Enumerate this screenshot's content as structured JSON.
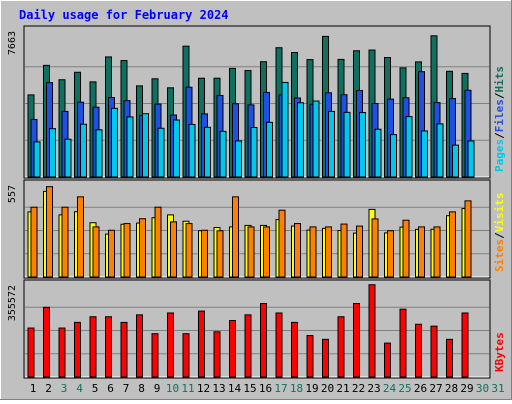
{
  "chart_data": [
    {
      "type": "bar",
      "title": "Daily usage for February 2024",
      "max_label": "7663",
      "right_labels": [
        {
          "text": "Pages",
          "color": "#00c8e8"
        },
        {
          "text": "/",
          "color": "#000000"
        },
        {
          "text": "Files",
          "color": "#2050e0"
        },
        {
          "text": "/",
          "color": "#000000"
        },
        {
          "text": "Hits",
          "color": "#107060"
        }
      ],
      "ylim": [
        0,
        7663
      ],
      "categories": [
        "1",
        "2",
        "3",
        "4",
        "5",
        "6",
        "7",
        "8",
        "9",
        "10",
        "11",
        "12",
        "13",
        "14",
        "15",
        "16",
        "17",
        "18",
        "19",
        "20",
        "21",
        "22",
        "23",
        "24",
        "25",
        "26",
        "27",
        "28",
        "29",
        "30",
        "31"
      ],
      "category_colors": [
        "#000000",
        "#000000",
        "#107060",
        "#107060",
        "#000000",
        "#000000",
        "#000000",
        "#000000",
        "#000000",
        "#107060",
        "#107060",
        "#000000",
        "#000000",
        "#000000",
        "#000000",
        "#000000",
        "#107060",
        "#107060",
        "#000000",
        "#000000",
        "#000000",
        "#000000",
        "#000000",
        "#107060",
        "#107060",
        "#000000",
        "#000000",
        "#000000",
        "#000000",
        "#107060",
        "#107060"
      ],
      "series": [
        {
          "name": "Hits",
          "color": "#107060",
          "values": [
            4280,
            5820,
            5070,
            5460,
            4960,
            6260,
            6070,
            4750,
            5120,
            4650,
            6820,
            5150,
            5150,
            5660,
            5550,
            6010,
            6740,
            6490,
            6120,
            7330,
            6130,
            6580,
            6620,
            6230,
            5690,
            6000,
            7360,
            5510,
            5400,
            0,
            0
          ]
        },
        {
          "name": "Files",
          "color": "#2050e0",
          "values": [
            3000,
            4920,
            3420,
            3900,
            3640,
            4140,
            3980,
            3200,
            3800,
            3230,
            4680,
            3290,
            4250,
            3820,
            3760,
            4410,
            4280,
            4120,
            3790,
            4390,
            4290,
            4510,
            3830,
            4060,
            4130,
            5490,
            3880,
            4090,
            4520,
            0,
            0
          ]
        },
        {
          "name": "Pages",
          "color": "#00c8e8",
          "values": [
            1830,
            2520,
            1970,
            2750,
            2460,
            3580,
            3130,
            3300,
            2540,
            2970,
            2740,
            2590,
            2380,
            1880,
            2580,
            2850,
            4930,
            3870,
            3960,
            3420,
            3370,
            3360,
            2490,
            2210,
            3150,
            2400,
            2770,
            1660,
            1880,
            0,
            0
          ]
        }
      ]
    },
    {
      "type": "bar",
      "max_label": "557",
      "right_labels": [
        {
          "text": "Sites",
          "color": "#ff8000"
        },
        {
          "text": "/",
          "color": "#000000"
        },
        {
          "text": "Visits",
          "color": "#ffff00"
        }
      ],
      "ylim": [
        0,
        557
      ],
      "series": [
        {
          "name": "Visits",
          "color": "#ffff00",
          "values": [
            390,
            513,
            372,
            391,
            325,
            257,
            316,
            323,
            355,
            372,
            334,
            277,
            296,
            300,
            309,
            309,
            344,
            305,
            281,
            291,
            278,
            263,
            405,
            264,
            299,
            285,
            286,
            367,
            410,
            0,
            0
          ]
        },
        {
          "name": "Sites",
          "color": "#ff8000",
          "values": [
            418,
            541,
            418,
            480,
            300,
            280,
            320,
            349,
            418,
            330,
            320,
            280,
            277,
            480,
            300,
            300,
            400,
            320,
            300,
            300,
            317,
            305,
            348,
            277,
            340,
            300,
            300,
            390,
            456,
            0,
            0
          ]
        }
      ]
    },
    {
      "type": "bar",
      "max_label": "355572",
      "right_labels": [
        {
          "text": "KBytes",
          "color": "#ff0000"
        }
      ],
      "ylim": [
        0,
        355572
      ],
      "series": [
        {
          "name": "KBytes",
          "color": "#ff0000",
          "values": [
            187200,
            266400,
            187200,
            208800,
            230400,
            230400,
            208800,
            237600,
            165600,
            244800,
            165600,
            252000,
            172800,
            216000,
            237600,
            280800,
            244800,
            208800,
            158400,
            144000,
            230400,
            280800,
            352800,
            129600,
            259200,
            201600,
            194400,
            144000,
            244800,
            0,
            0
          ]
        }
      ]
    }
  ]
}
